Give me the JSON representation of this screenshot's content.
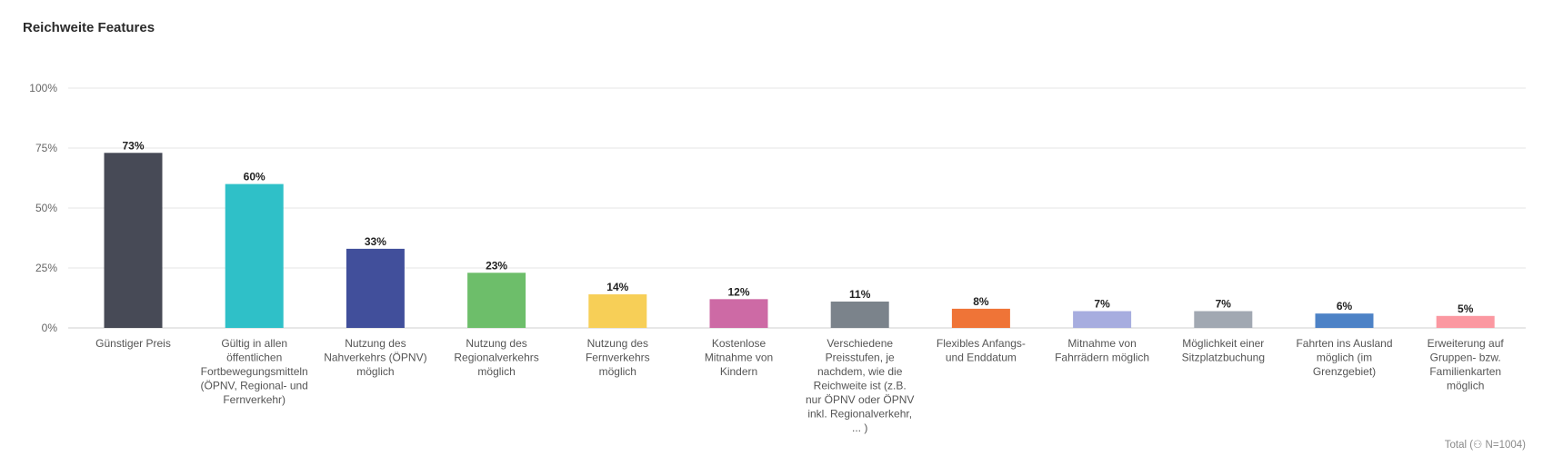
{
  "title": "Reichweite Features",
  "footer": "Total (⚇ N=1004)",
  "chart_data": {
    "type": "bar",
    "categories": [
      "Günstiger Preis",
      "Gültig in allen öffentlichen Fortbewegungsmitteln (ÖPNV, Regional- und Fernverkehr)",
      "Nutzung des Nahverkehrs (ÖPNV) möglich",
      "Nutzung des Regionalverkehrs möglich",
      "Nutzung des Fernverkehrs möglich",
      "Kostenlose Mitnahme von Kindern",
      "Verschiedene Preisstufen, je nachdem, wie die Reichweite ist (z.B. nur ÖPNV oder ÖPNV inkl. Regionalverkehr, ... )",
      "Flexibles Anfangs- und Enddatum",
      "Mitnahme von Fahrrädern möglich",
      "Möglichkeit einer Sitzplatzbuchung",
      "Fahrten ins Ausland möglich (im Grenzgebiet)",
      "Erweiterung auf Gruppen- bzw. Familienkarten möglich"
    ],
    "category_lines": [
      [
        "Günstiger Preis"
      ],
      [
        "Gültig in allen",
        "öffentlichen",
        "Fortbewegungsmitteln",
        "(ÖPNV, Regional- und",
        "Fernverkehr)"
      ],
      [
        "Nutzung des",
        "Nahverkehrs (ÖPNV)",
        "möglich"
      ],
      [
        "Nutzung des",
        "Regionalverkehrs",
        "möglich"
      ],
      [
        "Nutzung des",
        "Fernverkehrs",
        "möglich"
      ],
      [
        "Kostenlose",
        "Mitnahme von",
        "Kindern"
      ],
      [
        "Verschiedene",
        "Preisstufen, je",
        "nachdem, wie die",
        "Reichweite ist (z.B.",
        "nur ÖPNV oder ÖPNV",
        "inkl. Regionalverkehr,",
        "... )"
      ],
      [
        "Flexibles Anfangs-",
        "und Enddatum"
      ],
      [
        "Mitnahme von",
        "Fahrrädern möglich"
      ],
      [
        "Möglichkeit einer",
        "Sitzplatzbuchung"
      ],
      [
        "Fahrten ins Ausland",
        "möglich (im",
        "Grenzgebiet)"
      ],
      [
        "Erweiterung auf",
        "Gruppen- bzw.",
        "Familienkarten",
        "möglich"
      ]
    ],
    "values": [
      73,
      60,
      33,
      23,
      14,
      12,
      11,
      8,
      7,
      7,
      6,
      5
    ],
    "data_labels": [
      "73%",
      "60%",
      "33%",
      "23%",
      "14%",
      "12%",
      "11%",
      "8%",
      "7%",
      "7%",
      "6%",
      "5%"
    ],
    "colors": [
      "#474a56",
      "#2fc0c8",
      "#414f9b",
      "#6dbe6a",
      "#f7cf57",
      "#cd6aa5",
      "#7b838b",
      "#ef7437",
      "#a7addf",
      "#a1a8b2",
      "#4d82c6",
      "#fb98a1"
    ],
    "yticks": [
      0,
      25,
      50,
      75,
      100
    ],
    "ytick_labels": [
      "0%",
      "25%",
      "50%",
      "75%",
      "100%"
    ],
    "ylim": [
      0,
      100
    ],
    "grid": true,
    "legend": "none"
  }
}
